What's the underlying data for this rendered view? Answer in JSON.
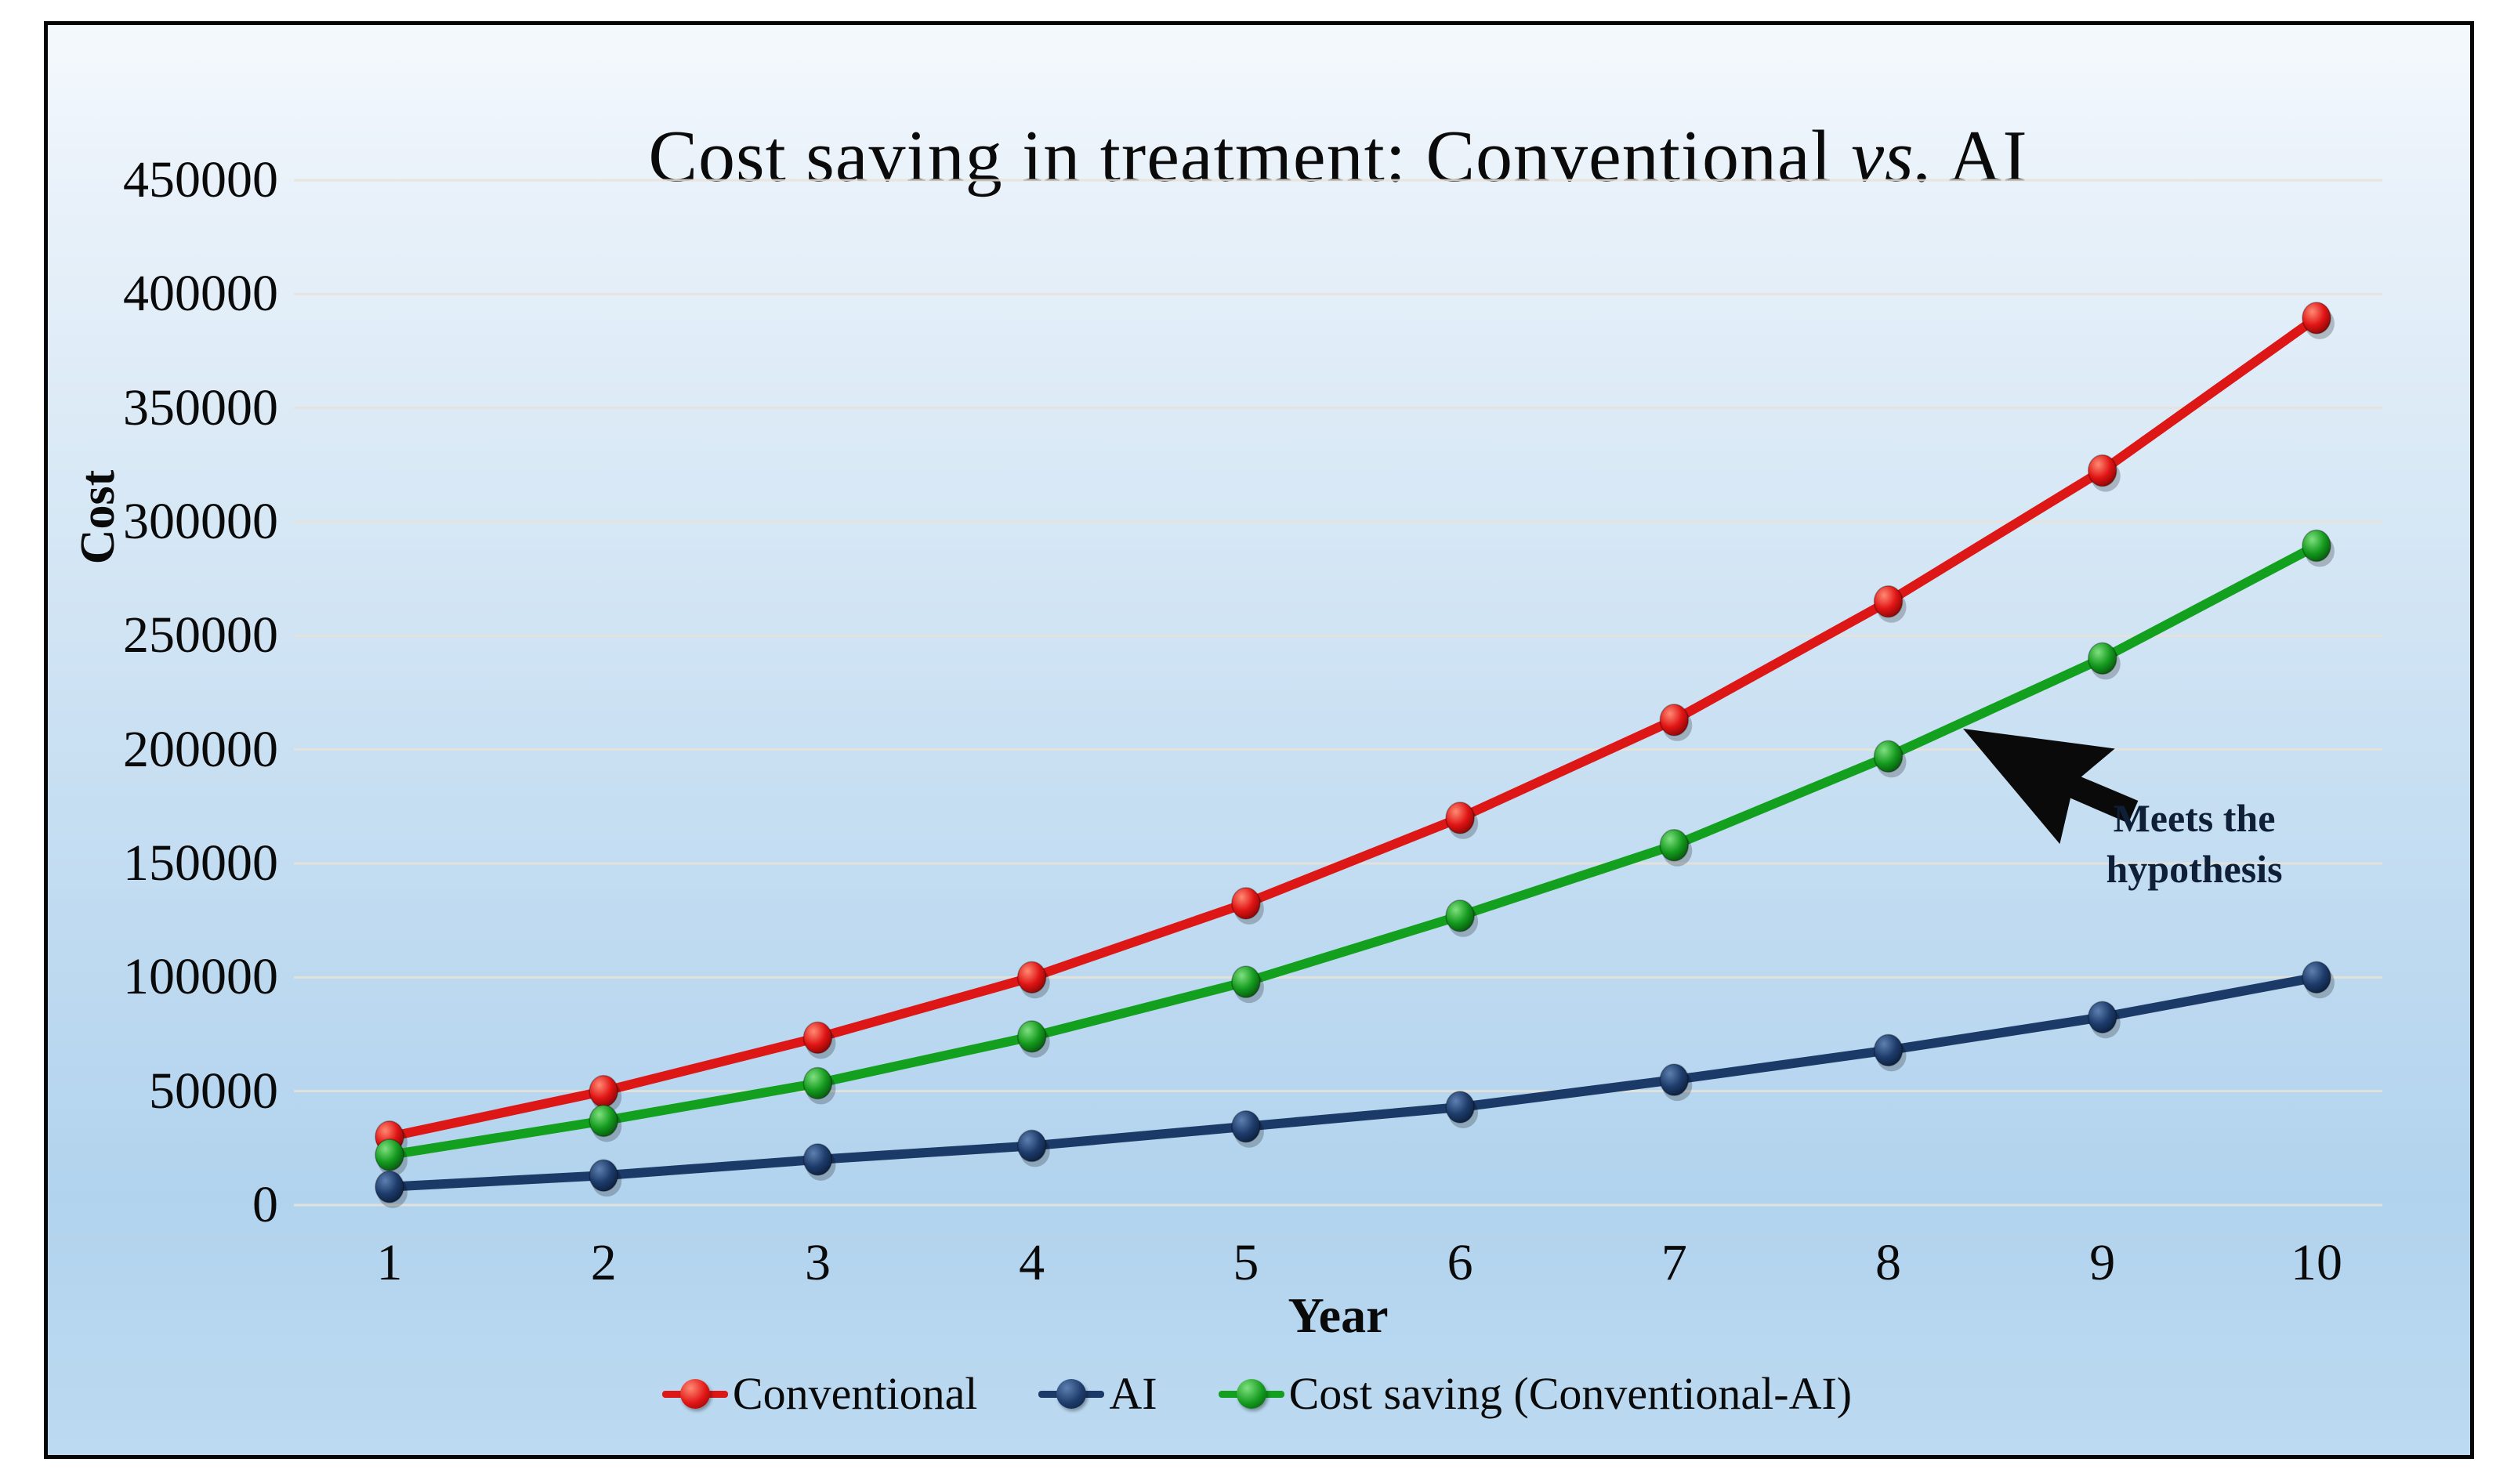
{
  "window": {
    "frame_border_color": "#060606",
    "background_top": "#f4f9fd",
    "background_bottom": "#bcdaf1",
    "gridline_color": "#e7e2d8"
  },
  "title": {
    "prefix": "Cost saving in treatment: Conventional ",
    "italic": "vs.",
    "suffix": " AI",
    "full": "Cost saving in treatment: Conventional vs. AI"
  },
  "axes": {
    "y_label": "Cost",
    "x_label": "Year"
  },
  "annotation": {
    "text": "Meets the\nhypothesis",
    "arrow_color": "#0a0a0a"
  },
  "chart_data": {
    "type": "line",
    "title": "Cost saving in treatment: Conventional vs. AI",
    "xlabel": "Year",
    "ylabel": "Cost",
    "x": [
      1,
      2,
      3,
      4,
      5,
      6,
      7,
      8,
      9,
      10
    ],
    "ylim": [
      0,
      450000
    ],
    "y_ticks": [
      0,
      50000,
      100000,
      150000,
      200000,
      250000,
      300000,
      350000,
      400000,
      450000
    ],
    "grid": true,
    "legend_position": "bottom",
    "series": [
      {
        "name": "Conventional",
        "color": "#dd1616",
        "dot_colors": [
          "#ff8a73",
          "#e01414",
          "#7e0404"
        ],
        "values": [
          30000,
          50000,
          73500,
          100000,
          132500,
          170000,
          213000,
          265000,
          322500,
          389500
        ]
      },
      {
        "name": "AI",
        "color": "#1c3a68",
        "dot_colors": [
          "#5d80b0",
          "#1d3b6a",
          "#0a1c38"
        ],
        "values": [
          8000,
          13000,
          20000,
          26000,
          34500,
          43000,
          55000,
          68000,
          82500,
          100000
        ]
      },
      {
        "name": "Cost saving (Conventional-AI)",
        "color": "#13a01e",
        "dot_colors": [
          "#7fe07f",
          "#149a1e",
          "#064d0c"
        ],
        "values": [
          22000,
          37000,
          53500,
          74000,
          98000,
          127000,
          158000,
          197000,
          240000,
          289500
        ]
      }
    ]
  }
}
